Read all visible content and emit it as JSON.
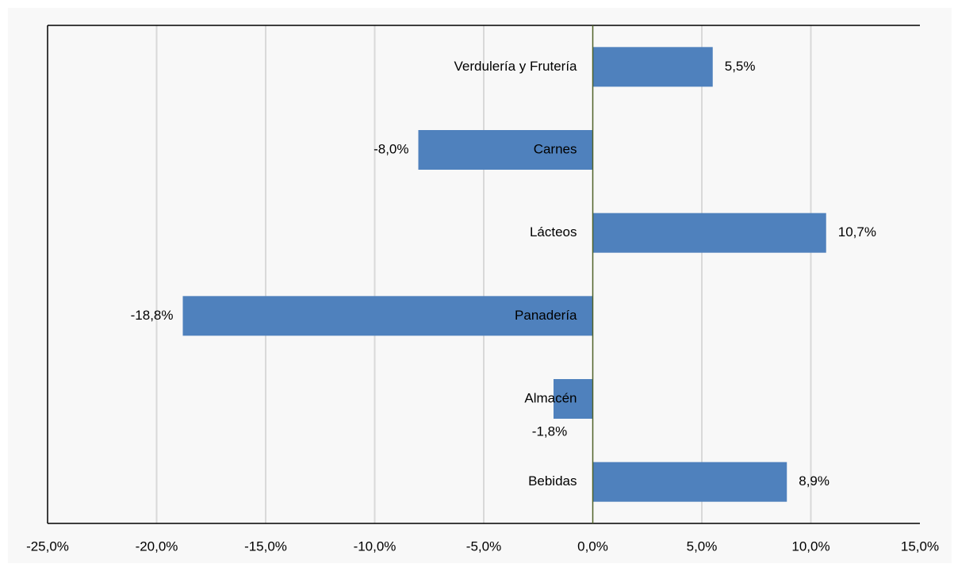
{
  "chart_data": {
    "type": "barh",
    "categories": [
      "Verdulería y Frutería",
      "Carnes",
      "Lácteos",
      "Panadería",
      "Almacén",
      "Bebidas"
    ],
    "values": [
      5.5,
      -8.0,
      10.7,
      -18.8,
      -1.8,
      8.9
    ],
    "value_labels": [
      "5,5%",
      "-8,0%",
      "10,7%",
      "-18,8%",
      "-1,8%",
      "8,9%"
    ],
    "color": "#4f81bd",
    "xlim": [
      -25,
      15
    ],
    "xticks": [
      {
        "value": -25,
        "label": "-25,0%"
      },
      {
        "value": -20,
        "label": "-20,0%"
      },
      {
        "value": -15,
        "label": "-15,0%"
      },
      {
        "value": -10,
        "label": "-10,0%"
      },
      {
        "value": -5,
        "label": "-5,0%"
      },
      {
        "value": 0,
        "label": "0,0%"
      },
      {
        "value": 5,
        "label": "5,0%"
      },
      {
        "value": 10,
        "label": "10,0%"
      },
      {
        "value": 15,
        "label": "15,0%"
      }
    ],
    "grid": true
  }
}
